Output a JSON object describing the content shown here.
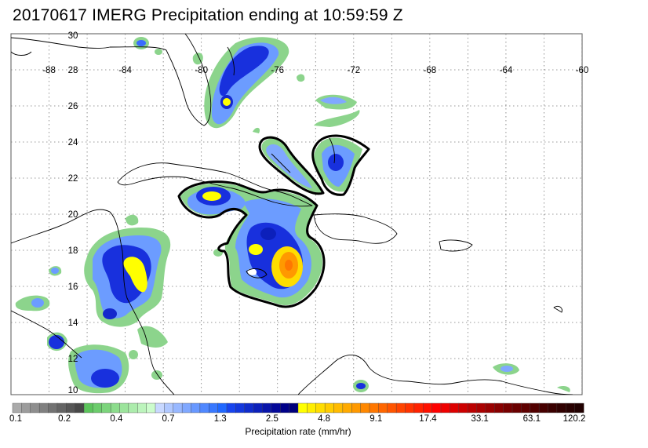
{
  "title": "20170617 IMERG Precipitation ending at 10:59:59 Z",
  "map": {
    "lon_ticks": [
      "-88",
      "-84",
      "-80",
      "-76",
      "-72",
      "-68",
      "-64",
      "-60"
    ],
    "lat_ticks": [
      "30",
      "28",
      "26",
      "24",
      "22",
      "20",
      "18",
      "16",
      "14",
      "12",
      "10"
    ],
    "lon_range": [
      -90,
      -60
    ],
    "lat_range": [
      10,
      30
    ],
    "grid": "dotted"
  },
  "colorbar": {
    "title": "Precipitation rate (mm/hr)",
    "labels": [
      "0.1",
      "0.2",
      "0.4",
      "0.7",
      "1.3",
      "2.5",
      "4.8",
      "9.1",
      "17.4",
      "33.1",
      "63.1",
      "120.2"
    ],
    "colors": [
      "#aaaaaa",
      "#9c9c9c",
      "#8e8e8e",
      "#808080",
      "#727272",
      "#646464",
      "#565656",
      "#484848",
      "#5cc45c",
      "#6ccc6c",
      "#7cd47c",
      "#8cdc8c",
      "#9ce49c",
      "#acecac",
      "#bcf4bc",
      "#ccfccc",
      "#c8d8ff",
      "#b0c8ff",
      "#98b8ff",
      "#80a8ff",
      "#6898ff",
      "#5088ff",
      "#3878ff",
      "#2068ff",
      "#1844ee",
      "#1438dd",
      "#102ccc",
      "#0c20bb",
      "#0814aa",
      "#040899",
      "#000088",
      "#00007a",
      "#ffff00",
      "#ffee00",
      "#ffdd00",
      "#ffcc00",
      "#ffbb00",
      "#ffaa00",
      "#ff9900",
      "#ff8800",
      "#ff7700",
      "#ff6600",
      "#ff5500",
      "#ff4400",
      "#ff3300",
      "#ff2200",
      "#ff1100",
      "#ff0000",
      "#ee0000",
      "#dd0000",
      "#cc0000",
      "#bb0000",
      "#aa0000",
      "#990000",
      "#880000",
      "#770000",
      "#6a0000",
      "#5e0000",
      "#520000",
      "#460000",
      "#3a0000",
      "#300000",
      "#280000",
      "#200000"
    ]
  }
}
